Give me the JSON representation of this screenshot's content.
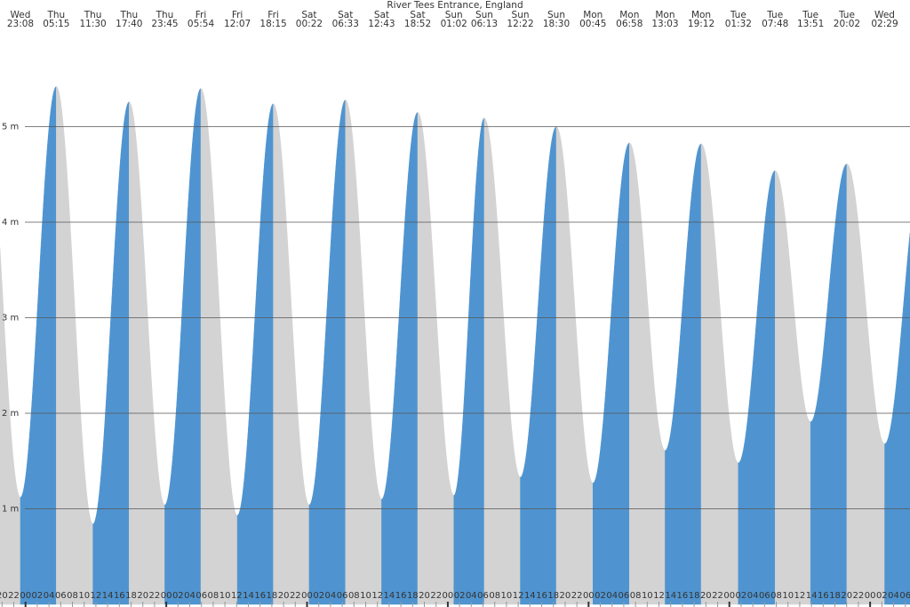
{
  "chart_data": {
    "type": "tide-area",
    "title": "River Tees Entrance, England",
    "rise_color": "#4f94d0",
    "fall_color": "#d3d3d3",
    "ylim": [
      0,
      6
    ],
    "yticks": [
      {
        "value": 1,
        "label": "1 m"
      },
      {
        "value": 2,
        "label": "2 m"
      },
      {
        "value": 3,
        "label": "3 m"
      },
      {
        "value": 4,
        "label": "4 m"
      },
      {
        "value": 5,
        "label": "5 m"
      }
    ],
    "xlim": [
      19.65,
      174.8
    ],
    "xticks": [
      20,
      22,
      {
        "value": 24,
        "label": "00"
      },
      {
        "value": 26,
        "label": "02"
      },
      {
        "value": 28,
        "label": "04"
      },
      {
        "value": 30,
        "label": "06"
      },
      {
        "value": 32,
        "label": "08"
      },
      {
        "value": 34,
        "label": "10"
      },
      {
        "value": 36,
        "label": "12"
      },
      {
        "value": 38,
        "label": "14"
      },
      {
        "value": 40,
        "label": "16"
      },
      {
        "value": 42,
        "label": "18"
      },
      {
        "value": 44,
        "label": "20"
      },
      {
        "value": 46,
        "label": "22"
      },
      {
        "value": 48,
        "label": "00"
      },
      {
        "value": 50,
        "label": "02"
      },
      {
        "value": 52,
        "label": "04"
      },
      {
        "value": 54,
        "label": "06"
      },
      {
        "value": 56,
        "label": "08"
      },
      {
        "value": 58,
        "label": "10"
      },
      {
        "value": 60,
        "label": "12"
      },
      {
        "value": 62,
        "label": "14"
      },
      {
        "value": 64,
        "label": "16"
      },
      {
        "value": 66,
        "label": "18"
      },
      {
        "value": 68,
        "label": "20"
      },
      {
        "value": 70,
        "label": "22"
      },
      {
        "value": 72,
        "label": "00"
      },
      {
        "value": 74,
        "label": "02"
      },
      {
        "value": 76,
        "label": "04"
      },
      {
        "value": 78,
        "label": "06"
      },
      {
        "value": 80,
        "label": "08"
      },
      {
        "value": 82,
        "label": "10"
      },
      {
        "value": 84,
        "label": "12"
      },
      {
        "value": 86,
        "label": "14"
      },
      {
        "value": 88,
        "label": "16"
      },
      {
        "value": 90,
        "label": "18"
      },
      {
        "value": 92,
        "label": "20"
      },
      {
        "value": 94,
        "label": "22"
      },
      {
        "value": 96,
        "label": "00"
      },
      {
        "value": 98,
        "label": "02"
      },
      {
        "value": 100,
        "label": "04"
      },
      {
        "value": 102,
        "label": "06"
      },
      {
        "value": 104,
        "label": "08"
      },
      {
        "value": 106,
        "label": "10"
      },
      {
        "value": 108,
        "label": "12"
      },
      {
        "value": 110,
        "label": "14"
      },
      {
        "value": 112,
        "label": "16"
      },
      {
        "value": 114,
        "label": "18"
      },
      {
        "value": 116,
        "label": "20"
      },
      {
        "value": 118,
        "label": "22"
      },
      {
        "value": 120,
        "label": "00"
      },
      {
        "value": 122,
        "label": "02"
      },
      {
        "value": 124,
        "label": "04"
      },
      {
        "value": 126,
        "label": "06"
      },
      {
        "value": 128,
        "label": "08"
      },
      {
        "value": 130,
        "label": "10"
      },
      {
        "value": 132,
        "label": "12"
      },
      {
        "value": 134,
        "label": "14"
      },
      {
        "value": 136,
        "label": "16"
      },
      {
        "value": 138,
        "label": "18"
      },
      {
        "value": 140,
        "label": "20"
      },
      {
        "value": 142,
        "label": "22"
      },
      {
        "value": 144,
        "label": "00"
      },
      {
        "value": 146,
        "label": "02"
      },
      {
        "value": 148,
        "label": "04"
      },
      {
        "value": 150,
        "label": "06"
      },
      {
        "value": 152,
        "label": "08"
      },
      {
        "value": 154,
        "label": "10"
      },
      {
        "value": 156,
        "label": "12"
      },
      {
        "value": 158,
        "label": "14"
      },
      {
        "value": 160,
        "label": "16"
      },
      {
        "value": 162,
        "label": "18"
      },
      {
        "value": 164,
        "label": "20"
      },
      {
        "value": 166,
        "label": "22"
      },
      {
        "value": 168,
        "label": "00"
      },
      {
        "value": 170,
        "label": "02"
      },
      {
        "value": 172,
        "label": "04"
      },
      {
        "value": 174,
        "label": "06"
      }
    ],
    "extremes": [
      {
        "day": "Wed",
        "time": "23:08",
        "height": 1.12
      },
      {
        "day": "Thu",
        "time": "05:15",
        "height": 5.42
      },
      {
        "day": "Thu",
        "time": "11:30",
        "height": 0.84
      },
      {
        "day": "Thu",
        "time": "17:40",
        "height": 5.26
      },
      {
        "day": "Thu",
        "time": "23:45",
        "height": 1.04
      },
      {
        "day": "Fri",
        "time": "05:54",
        "height": 5.4
      },
      {
        "day": "Fri",
        "time": "12:07",
        "height": 0.93
      },
      {
        "day": "Fri",
        "time": "18:15",
        "height": 5.24
      },
      {
        "day": "Sat",
        "time": "00:22",
        "height": 1.04
      },
      {
        "day": "Sat",
        "time": "06:33",
        "height": 5.28
      },
      {
        "day": "Sat",
        "time": "12:43",
        "height": 1.1
      },
      {
        "day": "Sat",
        "time": "18:52",
        "height": 5.15
      },
      {
        "day": "Sun",
        "time": "01:02",
        "height": 1.14
      },
      {
        "day": "Sun",
        "time": "06:13",
        "height": 5.09
      },
      {
        "day": "Sun",
        "time": "12:22",
        "height": 1.33
      },
      {
        "day": "Sun",
        "time": "18:30",
        "height": 5.0
      },
      {
        "day": "Mon",
        "time": "00:45",
        "height": 1.27
      },
      {
        "day": "Mon",
        "time": "06:58",
        "height": 4.83
      },
      {
        "day": "Mon",
        "time": "13:03",
        "height": 1.61
      },
      {
        "day": "Mon",
        "time": "19:12",
        "height": 4.82
      },
      {
        "day": "Tue",
        "time": "01:32",
        "height": 1.48
      },
      {
        "day": "Tue",
        "time": "07:48",
        "height": 4.54
      },
      {
        "day": "Tue",
        "time": "13:51",
        "height": 1.91
      },
      {
        "day": "Tue",
        "time": "20:02",
        "height": 4.61
      },
      {
        "day": "Wed",
        "time": "02:29",
        "height": 1.68
      }
    ]
  }
}
